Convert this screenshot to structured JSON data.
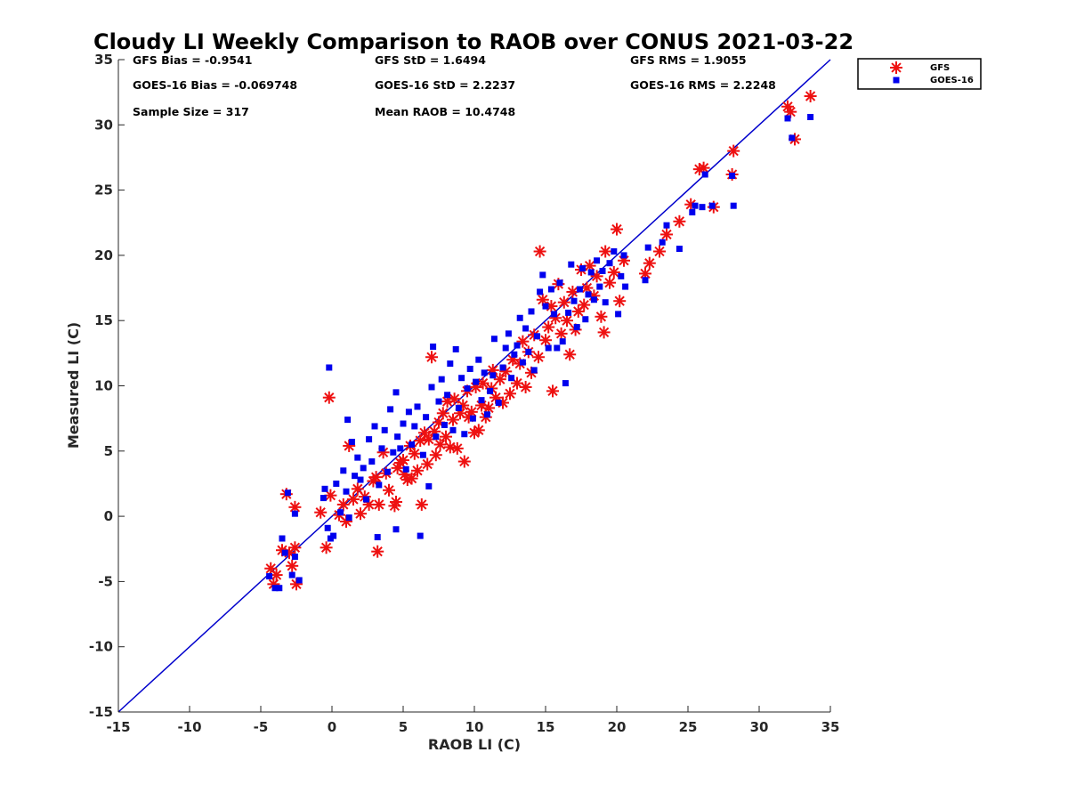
{
  "chart_data": {
    "type": "scatter",
    "title": "Cloudy LI Weekly Comparison to RAOB over CONUS 2021-03-22",
    "xlabel": "RAOB LI (C)",
    "ylabel": "Measured LI (C)",
    "xlim": [
      -15,
      35
    ],
    "ylim": [
      -15,
      35
    ],
    "xticks": [
      -15,
      -10,
      -5,
      0,
      5,
      10,
      15,
      20,
      25,
      30,
      35
    ],
    "yticks": [
      -15,
      -10,
      -5,
      0,
      5,
      10,
      15,
      20,
      25,
      30,
      35
    ],
    "xtick_labels": [
      "-15",
      "-10",
      "-5",
      "0",
      "5",
      "10",
      "15",
      "20",
      "25",
      "30",
      "35"
    ],
    "ytick_labels": [
      "-15",
      "-10",
      "-5",
      "0",
      "5",
      "10",
      "15",
      "20",
      "25",
      "30",
      "35"
    ],
    "grid": false,
    "legend_position": "top-right",
    "reference_line": {
      "from": [
        -15,
        -15
      ],
      "to": [
        35,
        35
      ],
      "color": "#0000cc"
    },
    "stats": [
      {
        "label": "GFS Bias = -0.9541"
      },
      {
        "label": "GFS StD = 1.6494"
      },
      {
        "label": "GFS RMS = 1.9055"
      },
      {
        "label": "GOES-16 Bias = -0.069748"
      },
      {
        "label": "GOES-16 StD = 2.2237"
      },
      {
        "label": "GOES-16 RMS = 2.2248"
      },
      {
        "label": "Sample Size = 317"
      },
      {
        "label": "Mean RAOB = 10.4748"
      }
    ],
    "series": [
      {
        "name": "GFS",
        "color": "#ee1111",
        "marker": "asterisk",
        "points": [
          [
            -4.3,
            -4.0
          ],
          [
            -3.9,
            -4.5
          ],
          [
            -4.1,
            -5.2
          ],
          [
            -3.5,
            -2.6
          ],
          [
            -3.0,
            -2.8
          ],
          [
            -2.8,
            -3.8
          ],
          [
            -2.6,
            -2.4
          ],
          [
            -2.5,
            -5.2
          ],
          [
            -3.2,
            1.7
          ],
          [
            -2.6,
            0.7
          ],
          [
            -0.2,
            9.1
          ],
          [
            -0.8,
            0.3
          ],
          [
            -0.4,
            -2.4
          ],
          [
            -0.1,
            1.6
          ],
          [
            0.5,
            0.1
          ],
          [
            0.8,
            0.9
          ],
          [
            1.0,
            -0.4
          ],
          [
            1.2,
            5.4
          ],
          [
            1.5,
            1.3
          ],
          [
            1.8,
            2.1
          ],
          [
            2.0,
            0.2
          ],
          [
            2.3,
            1.5
          ],
          [
            2.6,
            0.9
          ],
          [
            2.9,
            2.7
          ],
          [
            3.1,
            3.0
          ],
          [
            3.3,
            0.9
          ],
          [
            3.2,
            -2.7
          ],
          [
            3.6,
            4.9
          ],
          [
            3.8,
            3.3
          ],
          [
            4.0,
            2.0
          ],
          [
            4.4,
            0.8
          ],
          [
            4.5,
            1.1
          ],
          [
            4.6,
            3.7
          ],
          [
            4.8,
            4.1
          ],
          [
            5.0,
            4.3
          ],
          [
            5.1,
            3.2
          ],
          [
            5.3,
            2.8
          ],
          [
            5.5,
            5.4
          ],
          [
            5.6,
            2.9
          ],
          [
            5.8,
            4.8
          ],
          [
            6.0,
            3.5
          ],
          [
            6.2,
            5.8
          ],
          [
            6.3,
            0.9
          ],
          [
            6.5,
            6.4
          ],
          [
            6.7,
            4.0
          ],
          [
            6.8,
            5.9
          ],
          [
            7.0,
            12.2
          ],
          [
            7.2,
            6.5
          ],
          [
            7.3,
            4.7
          ],
          [
            7.5,
            7.2
          ],
          [
            7.6,
            5.5
          ],
          [
            7.8,
            7.9
          ],
          [
            8.0,
            6.1
          ],
          [
            8.1,
            8.8
          ],
          [
            8.3,
            5.3
          ],
          [
            8.5,
            7.4
          ],
          [
            8.6,
            9.0
          ],
          [
            8.8,
            5.2
          ],
          [
            9.0,
            7.9
          ],
          [
            9.2,
            8.5
          ],
          [
            9.3,
            4.2
          ],
          [
            9.5,
            9.6
          ],
          [
            9.6,
            7.6
          ],
          [
            9.8,
            8.0
          ],
          [
            10.0,
            6.4
          ],
          [
            10.1,
            9.9
          ],
          [
            10.3,
            6.6
          ],
          [
            10.5,
            8.5
          ],
          [
            10.6,
            10.2
          ],
          [
            10.8,
            7.6
          ],
          [
            11.0,
            8.3
          ],
          [
            11.2,
            9.8
          ],
          [
            11.3,
            11.2
          ],
          [
            11.5,
            9.1
          ],
          [
            11.8,
            10.5
          ],
          [
            12.0,
            8.7
          ],
          [
            12.2,
            11.1
          ],
          [
            12.5,
            9.4
          ],
          [
            12.7,
            12.0
          ],
          [
            13.0,
            10.2
          ],
          [
            13.2,
            11.7
          ],
          [
            13.4,
            13.4
          ],
          [
            13.6,
            9.9
          ],
          [
            13.8,
            12.6
          ],
          [
            14.0,
            11.0
          ],
          [
            14.2,
            13.9
          ],
          [
            14.5,
            12.2
          ],
          [
            14.6,
            20.3
          ],
          [
            14.8,
            16.6
          ],
          [
            15.0,
            13.5
          ],
          [
            15.2,
            14.5
          ],
          [
            15.4,
            16.1
          ],
          [
            15.5,
            9.6
          ],
          [
            15.7,
            15.2
          ],
          [
            15.9,
            17.8
          ],
          [
            16.1,
            14.0
          ],
          [
            16.3,
            16.4
          ],
          [
            16.5,
            15.0
          ],
          [
            16.7,
            12.4
          ],
          [
            16.9,
            17.2
          ],
          [
            17.1,
            14.3
          ],
          [
            17.3,
            15.7
          ],
          [
            17.5,
            18.9
          ],
          [
            17.7,
            16.2
          ],
          [
            17.9,
            17.5
          ],
          [
            18.1,
            19.2
          ],
          [
            18.4,
            16.9
          ],
          [
            18.6,
            18.4
          ],
          [
            18.9,
            15.3
          ],
          [
            19.1,
            14.1
          ],
          [
            19.2,
            20.3
          ],
          [
            19.5,
            17.9
          ],
          [
            19.8,
            18.7
          ],
          [
            20.0,
            22.0
          ],
          [
            20.2,
            16.5
          ],
          [
            20.5,
            19.6
          ],
          [
            22.0,
            18.6
          ],
          [
            22.3,
            19.4
          ],
          [
            23.0,
            20.3
          ],
          [
            23.5,
            21.6
          ],
          [
            24.4,
            22.6
          ],
          [
            25.2,
            23.9
          ],
          [
            25.8,
            26.6
          ],
          [
            26.1,
            26.7
          ],
          [
            26.8,
            23.7
          ],
          [
            28.2,
            28.0
          ],
          [
            28.1,
            26.2
          ],
          [
            32.0,
            31.4
          ],
          [
            32.2,
            31.0
          ],
          [
            32.5,
            28.9
          ],
          [
            33.6,
            32.2
          ]
        ]
      },
      {
        "name": "GOES-16",
        "color": "#0000ee",
        "marker": "square",
        "points": [
          [
            -4.4,
            -4.6
          ],
          [
            -4.0,
            -5.5
          ],
          [
            -3.7,
            -5.5
          ],
          [
            -3.5,
            -1.7
          ],
          [
            -3.3,
            -2.8
          ],
          [
            -3.1,
            1.8
          ],
          [
            -2.8,
            -4.5
          ],
          [
            -2.6,
            -3.1
          ],
          [
            -2.6,
            0.2
          ],
          [
            -2.3,
            -4.9
          ],
          [
            -0.2,
            11.4
          ],
          [
            -0.6,
            1.4
          ],
          [
            -0.5,
            2.1
          ],
          [
            -0.3,
            -0.9
          ],
          [
            -0.1,
            -1.7
          ],
          [
            0.1,
            -1.5
          ],
          [
            0.3,
            2.5
          ],
          [
            0.6,
            0.3
          ],
          [
            0.8,
            3.5
          ],
          [
            1.0,
            1.9
          ],
          [
            1.1,
            7.4
          ],
          [
            1.2,
            -0.1
          ],
          [
            1.4,
            5.7
          ],
          [
            1.6,
            3.1
          ],
          [
            1.8,
            4.5
          ],
          [
            2.0,
            2.8
          ],
          [
            2.2,
            3.7
          ],
          [
            2.4,
            1.3
          ],
          [
            2.6,
            5.9
          ],
          [
            2.8,
            4.2
          ],
          [
            3.0,
            6.9
          ],
          [
            3.2,
            -1.6
          ],
          [
            3.3,
            2.4
          ],
          [
            3.5,
            5.2
          ],
          [
            3.7,
            6.6
          ],
          [
            3.9,
            3.4
          ],
          [
            4.1,
            8.2
          ],
          [
            4.3,
            4.9
          ],
          [
            4.5,
            -1.0
          ],
          [
            4.5,
            9.5
          ],
          [
            4.6,
            6.1
          ],
          [
            4.8,
            5.2
          ],
          [
            5.0,
            7.1
          ],
          [
            5.2,
            3.6
          ],
          [
            5.4,
            8.0
          ],
          [
            5.6,
            5.5
          ],
          [
            5.8,
            6.9
          ],
          [
            6.0,
            8.4
          ],
          [
            6.2,
            -1.5
          ],
          [
            6.4,
            4.7
          ],
          [
            6.6,
            7.6
          ],
          [
            6.8,
            2.3
          ],
          [
            7.0,
            9.9
          ],
          [
            7.1,
            13.0
          ],
          [
            7.3,
            6.1
          ],
          [
            7.5,
            8.8
          ],
          [
            7.7,
            10.5
          ],
          [
            7.9,
            7.0
          ],
          [
            8.1,
            9.3
          ],
          [
            8.3,
            11.7
          ],
          [
            8.5,
            6.6
          ],
          [
            8.7,
            12.8
          ],
          [
            8.9,
            8.3
          ],
          [
            9.1,
            10.6
          ],
          [
            9.3,
            6.3
          ],
          [
            9.5,
            9.8
          ],
          [
            9.7,
            11.3
          ],
          [
            9.9,
            7.5
          ],
          [
            10.1,
            10.3
          ],
          [
            10.3,
            12.0
          ],
          [
            10.5,
            8.9
          ],
          [
            10.7,
            11.0
          ],
          [
            10.9,
            7.8
          ],
          [
            11.1,
            9.6
          ],
          [
            11.3,
            10.8
          ],
          [
            11.4,
            13.6
          ],
          [
            11.7,
            8.7
          ],
          [
            12.0,
            11.4
          ],
          [
            12.2,
            12.9
          ],
          [
            12.4,
            14.0
          ],
          [
            12.6,
            10.6
          ],
          [
            12.8,
            12.4
          ],
          [
            13.0,
            13.1
          ],
          [
            13.2,
            15.2
          ],
          [
            13.4,
            11.8
          ],
          [
            13.6,
            14.4
          ],
          [
            13.8,
            12.6
          ],
          [
            14.0,
            15.7
          ],
          [
            14.2,
            11.2
          ],
          [
            14.4,
            13.8
          ],
          [
            14.6,
            17.2
          ],
          [
            14.8,
            18.5
          ],
          [
            15.0,
            16.1
          ],
          [
            15.2,
            12.9
          ],
          [
            15.4,
            17.4
          ],
          [
            15.6,
            15.5
          ],
          [
            15.8,
            12.9
          ],
          [
            16.0,
            17.9
          ],
          [
            16.2,
            13.4
          ],
          [
            16.4,
            10.2
          ],
          [
            16.6,
            15.6
          ],
          [
            16.8,
            19.3
          ],
          [
            17.0,
            16.5
          ],
          [
            17.2,
            14.5
          ],
          [
            17.4,
            17.4
          ],
          [
            17.6,
            19.0
          ],
          [
            17.8,
            15.1
          ],
          [
            18.0,
            17.0
          ],
          [
            18.2,
            18.7
          ],
          [
            18.4,
            16.6
          ],
          [
            18.6,
            19.6
          ],
          [
            18.8,
            17.6
          ],
          [
            19.0,
            18.8
          ],
          [
            19.2,
            16.4
          ],
          [
            19.5,
            19.4
          ],
          [
            19.8,
            20.3
          ],
          [
            20.1,
            15.5
          ],
          [
            20.3,
            18.4
          ],
          [
            20.5,
            20.0
          ],
          [
            20.6,
            17.6
          ],
          [
            22.0,
            18.1
          ],
          [
            22.2,
            20.6
          ],
          [
            23.2,
            21.0
          ],
          [
            23.5,
            22.3
          ],
          [
            24.4,
            20.5
          ],
          [
            25.3,
            23.3
          ],
          [
            25.5,
            23.8
          ],
          [
            26.0,
            23.7
          ],
          [
            26.2,
            26.2
          ],
          [
            26.7,
            23.8
          ],
          [
            28.2,
            23.8
          ],
          [
            28.1,
            26.1
          ],
          [
            32.0,
            30.5
          ],
          [
            32.3,
            29.0
          ],
          [
            33.6,
            30.6
          ]
        ]
      }
    ]
  }
}
